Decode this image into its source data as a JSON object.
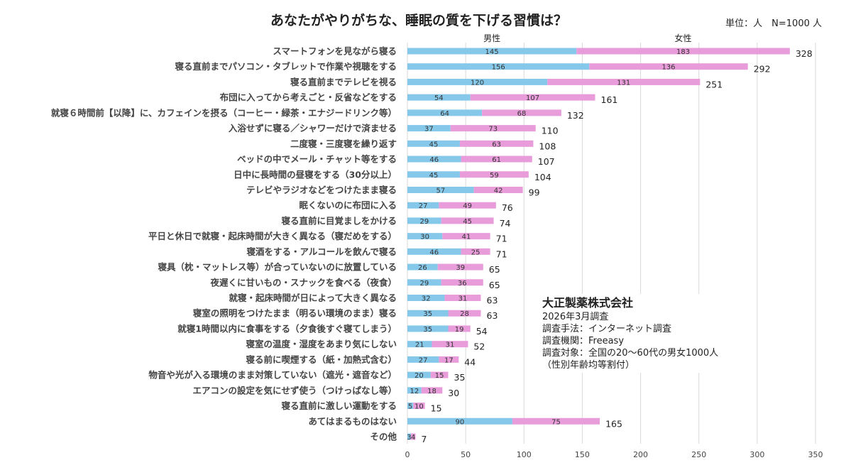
{
  "chart_data": {
    "type": "bar",
    "orientation": "horizontal",
    "stacked": true,
    "title": "あなたがやりがちな、睡眠の質を下げる習慣は？",
    "unit_note": "単位：人　N=1000 人",
    "xlim": [
      0,
      350
    ],
    "xticks": [
      0,
      50,
      100,
      150,
      200,
      250,
      300,
      350
    ],
    "grid": true,
    "legend": "top",
    "categories": [
      "スマートフォンを見ながら寝る",
      "寝る直前までパソコン・タブレットで作業や視聴をする",
      "寝る直前までテレビを視る",
      "布団に入ってから考えごと・反省などをする",
      "就寝６時間前【以降】に、カフェインを摂る（コーヒー・緑茶・エナジードリンク等）",
      "入浴せずに寝る／シャワーだけで済ませる",
      "二度寝・三度寝を繰り返す",
      "ベッドの中でメール・チャット等をする",
      "日中に長時間の昼寝をする（30分以上）",
      "テレビやラジオなどをつけたまま寝る",
      "眠くないのに布団に入る",
      "寝る直前に目覚ましをかける",
      "平日と休日で就寝・起床時間が大きく異なる（寝だめをする）",
      "寝酒をする・アルコールを飲んで寝る",
      "寝具（枕・マットレス等）が合っていないのに放置している",
      "夜遅くに甘いもの・スナックを食べる（夜食）",
      "就寝・起床時間が日によって大きく異なる",
      "寝室の照明をつけたまま（明るい環境のまま）寝る",
      "就寝1時間以内に食事をする（夕食後すぐ寝てしまう）",
      "寝室の温度・湿度をあまり気にしない",
      "寝る前に喫煙する（紙・加熱式含む）",
      "物音や光が入る環境のまま対策していない（遮光・遮音など）",
      "エアコンの設定を気にせず使う（つけっぱなし等）",
      "寝る直前に激しい運動をする",
      "あてはまるものはない",
      "その他"
    ],
    "series": [
      {
        "name": "男性",
        "color": "#85C8EA",
        "values": [
          145,
          156,
          120,
          54,
          64,
          37,
          45,
          46,
          45,
          57,
          27,
          29,
          30,
          46,
          26,
          29,
          32,
          35,
          35,
          21,
          27,
          20,
          12,
          5,
          90,
          3
        ]
      },
      {
        "name": "女性",
        "color": "#E89CDA",
        "values": [
          183,
          136,
          131,
          107,
          68,
          73,
          63,
          61,
          59,
          42,
          49,
          45,
          41,
          25,
          39,
          36,
          31,
          28,
          19,
          31,
          17,
          15,
          18,
          10,
          75,
          4
        ]
      }
    ],
    "totals": [
      328,
      292,
      251,
      161,
      132,
      110,
      108,
      107,
      104,
      99,
      76,
      74,
      71,
      71,
      65,
      65,
      63,
      63,
      54,
      52,
      44,
      35,
      30,
      15,
      165,
      7
    ]
  },
  "note": {
    "company": "大正製薬株式会社",
    "lines": [
      "2026年3月調査",
      "調査手法：インターネット調査",
      "調査機関：Freeasy",
      "調査対象：全国の20～60代の男女1000人",
      "（性別年齢均等割付）"
    ]
  }
}
